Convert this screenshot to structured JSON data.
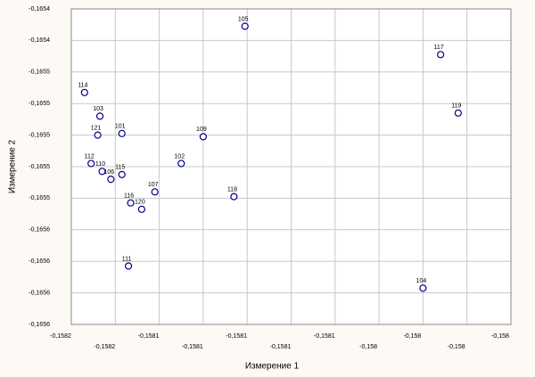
{
  "chart_data": {
    "type": "scatter",
    "xlabel": "Измерение 1",
    "ylabel": "Измерение 2",
    "labels": [
      "117",
      "119",
      "114",
      "103",
      "101",
      "121",
      "109",
      "112",
      "110",
      "106",
      "115",
      "102",
      "107",
      "118",
      "116",
      "120",
      "111",
      "104",
      "105"
    ],
    "x": [
      -0.158012,
      -0.158004,
      -0.158174,
      -0.158167,
      -0.158157,
      -0.158168,
      -0.15812,
      -0.158171,
      -0.158166,
      -0.158162,
      -0.158157,
      -0.15813,
      -0.158142,
      -0.158106,
      -0.158153,
      -0.158148,
      -0.158154,
      -0.15802,
      -0.158101
    ],
    "y": [
      -0.165449,
      -0.165486,
      -0.165473,
      -0.165488,
      -0.165499,
      -0.1655,
      -0.165501,
      -0.165518,
      -0.165523,
      -0.165528,
      -0.165525,
      -0.165518,
      -0.165536,
      -0.165539,
      -0.165543,
      -0.165547,
      -0.165583,
      -0.165597,
      -0.165431
    ],
    "color": "#00008b",
    "xlim": [
      -0.15818,
      -0.15798
    ],
    "ylim": [
      -0.16562,
      -0.16542
    ],
    "xticks": [
      {
        "value": -0.15818,
        "label": "-0,1582"
      },
      {
        "value": -0.15816,
        "label": "-0,1582"
      },
      {
        "value": -0.15814,
        "label": "-0,1581"
      },
      {
        "value": -0.15812,
        "label": "-0,1581"
      },
      {
        "value": -0.1581,
        "label": "-0,1581"
      },
      {
        "value": -0.15808,
        "label": "-0,1581"
      },
      {
        "value": -0.15806,
        "label": "-0,1581"
      },
      {
        "value": -0.15804,
        "label": "-0,158"
      },
      {
        "value": -0.15802,
        "label": "-0,158"
      },
      {
        "value": -0.158,
        "label": "-0,158"
      },
      {
        "value": -0.15798,
        "label": "-0,158"
      }
    ],
    "yticks": [
      {
        "value": -0.16542,
        "label": "-0,1654"
      },
      {
        "value": -0.16544,
        "label": "-0,1654"
      },
      {
        "value": -0.16546,
        "label": "-0,1655"
      },
      {
        "value": -0.16548,
        "label": "-0,1655"
      },
      {
        "value": -0.1655,
        "label": "-0,1655"
      },
      {
        "value": -0.16552,
        "label": "-0,1655"
      },
      {
        "value": -0.16554,
        "label": "-0,1655"
      },
      {
        "value": -0.16556,
        "label": "-0,1656"
      },
      {
        "value": -0.16558,
        "label": "-0,1656"
      },
      {
        "value": -0.1656,
        "label": "-0,1656"
      },
      {
        "value": -0.16562,
        "label": "-0,1656"
      }
    ],
    "grid": true
  }
}
